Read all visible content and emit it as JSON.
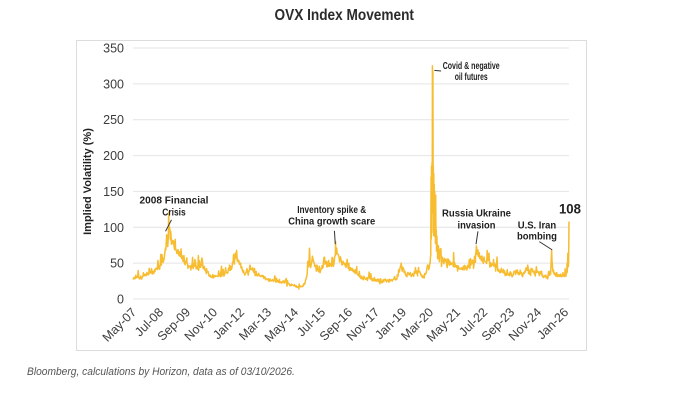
{
  "title": "OVX Index Movement",
  "footer": {
    "source": "Bloomberg, calculations by Horizon, data as of 03/10/2026."
  },
  "colors": {
    "line": "#F7BC2F",
    "grid": "#e4e4e4",
    "box_border": "#dcdcdc",
    "tick_text": "#3c3c3c",
    "annotation_text": "#1f1f1f",
    "pointer": "#333333",
    "title_text": "#2b2b2b",
    "source_text": "#555555"
  },
  "chart_data": {
    "type": "line",
    "title": "OVX Index Movement",
    "xlabel": "",
    "ylabel": "Implied Volatility (%)",
    "ylim": [
      0,
      350
    ],
    "yticks": [
      0,
      50,
      100,
      150,
      200,
      250,
      300,
      350
    ],
    "grid": "horizontal",
    "x_start_month": "2007-05",
    "x_range_months": 226,
    "xticks": [
      {
        "m": 0,
        "label": "May-07"
      },
      {
        "m": 14,
        "label": "Jul-08"
      },
      {
        "m": 28,
        "label": "Sep-09"
      },
      {
        "m": 42,
        "label": "Nov-10"
      },
      {
        "m": 56,
        "label": "Jan-12"
      },
      {
        "m": 70,
        "label": "Mar-13"
      },
      {
        "m": 84,
        "label": "May-14"
      },
      {
        "m": 98,
        "label": "Jul-15"
      },
      {
        "m": 112,
        "label": "Sep-16"
      },
      {
        "m": 126,
        "label": "Nov-17"
      },
      {
        "m": 140,
        "label": "Jan-19"
      },
      {
        "m": 154,
        "label": "Mar-20"
      },
      {
        "m": 168,
        "label": "May-21"
      },
      {
        "m": 182,
        "label": "Jul-22"
      },
      {
        "m": 196,
        "label": "Sep-23"
      },
      {
        "m": 210,
        "label": "Nov-24"
      },
      {
        "m": 224,
        "label": "Jan-26"
      }
    ],
    "series": [
      {
        "name": "OVX Index",
        "clean_ranges": [
          [
            18.9,
            19.15
          ],
          [
            104.95,
            105.15
          ],
          [
            155.1,
            155.6
          ],
          [
            177.9,
            178.15
          ],
          [
            216.9,
            217.15
          ],
          [
            225.5,
            226.01
          ]
        ],
        "anchors": [
          [
            0,
            29
          ],
          [
            2,
            32
          ],
          [
            4,
            30
          ],
          [
            6,
            33
          ],
          [
            8,
            36
          ],
          [
            10,
            37
          ],
          [
            12,
            40
          ],
          [
            14,
            44
          ],
          [
            15,
            50
          ],
          [
            16,
            58
          ],
          [
            17,
            70
          ],
          [
            17.5,
            85
          ],
          [
            18,
            75
          ],
          [
            18.5,
            95
          ],
          [
            19,
            100
          ],
          [
            19.3,
            85
          ],
          [
            19.6,
            92
          ],
          [
            20,
            78
          ],
          [
            21,
            80
          ],
          [
            22,
            68
          ],
          [
            24,
            62
          ],
          [
            26,
            55
          ],
          [
            28,
            50
          ],
          [
            30,
            46
          ],
          [
            32,
            44
          ],
          [
            34,
            42
          ],
          [
            36,
            48
          ],
          [
            37,
            44
          ],
          [
            38,
            38
          ],
          [
            40,
            34
          ],
          [
            42,
            32
          ],
          [
            44,
            33
          ],
          [
            46,
            34
          ],
          [
            48,
            36
          ],
          [
            50,
            42
          ],
          [
            51,
            44
          ],
          [
            52,
            56
          ],
          [
            52.5,
            50
          ],
          [
            53,
            65
          ],
          [
            53.4,
            55
          ],
          [
            53.8,
            60
          ],
          [
            54,
            52
          ],
          [
            55,
            50
          ],
          [
            56,
            46
          ],
          [
            57,
            40
          ],
          [
            58,
            37
          ],
          [
            59,
            42
          ],
          [
            60,
            36
          ],
          [
            61,
            42
          ],
          [
            62,
            40
          ],
          [
            63,
            36
          ],
          [
            64,
            36
          ],
          [
            66,
            33
          ],
          [
            68,
            30
          ],
          [
            70,
            27
          ],
          [
            72,
            26
          ],
          [
            74,
            25
          ],
          [
            76,
            24
          ],
          [
            78,
            23
          ],
          [
            80,
            21
          ],
          [
            82,
            20
          ],
          [
            84,
            18
          ],
          [
            86,
            17
          ],
          [
            88,
            18
          ],
          [
            89,
            22
          ],
          [
            90,
            30
          ],
          [
            91,
            48
          ],
          [
            91.5,
            55
          ],
          [
            92,
            45
          ],
          [
            93,
            60
          ],
          [
            93.5,
            50
          ],
          [
            94,
            48
          ],
          [
            95,
            42
          ],
          [
            96,
            40
          ],
          [
            97,
            38
          ],
          [
            98,
            42
          ],
          [
            98.5,
            46
          ],
          [
            99,
            58
          ],
          [
            99.5,
            48
          ],
          [
            100,
            52
          ],
          [
            100.5,
            44
          ],
          [
            101,
            46
          ],
          [
            102,
            48
          ],
          [
            103,
            50
          ],
          [
            103.5,
            56
          ],
          [
            104,
            52
          ],
          [
            104.5,
            58
          ],
          [
            104.9,
            62
          ],
          [
            105,
            80
          ],
          [
            105.15,
            62
          ],
          [
            105.5,
            70
          ],
          [
            105.8,
            60
          ],
          [
            106.2,
            64
          ],
          [
            106.8,
            55
          ],
          [
            107.5,
            58
          ],
          [
            108,
            50
          ],
          [
            110,
            48
          ],
          [
            112,
            44
          ],
          [
            114,
            42
          ],
          [
            116,
            37
          ],
          [
            118,
            32
          ],
          [
            120,
            30
          ],
          [
            122,
            29
          ],
          [
            124,
            27
          ],
          [
            126,
            26
          ],
          [
            128,
            25
          ],
          [
            130,
            26
          ],
          [
            132,
            26
          ],
          [
            134,
            25
          ],
          [
            136,
            28
          ],
          [
            137,
            30
          ],
          [
            138,
            38
          ],
          [
            139,
            48
          ],
          [
            139.5,
            40
          ],
          [
            140,
            44
          ],
          [
            140.5,
            38
          ],
          [
            141,
            36
          ],
          [
            142,
            34
          ],
          [
            143,
            37
          ],
          [
            144,
            36
          ],
          [
            145,
            34
          ],
          [
            146,
            35
          ],
          [
            147,
            40
          ],
          [
            147.5,
            36
          ],
          [
            148,
            44
          ],
          [
            148.3,
            38
          ],
          [
            149,
            36
          ],
          [
            150,
            33
          ],
          [
            151,
            32
          ],
          [
            152,
            35
          ],
          [
            153,
            42
          ],
          [
            154,
            48
          ],
          [
            154.35,
            55
          ],
          [
            154.5,
            170
          ],
          [
            154.62,
            80
          ],
          [
            154.74,
            185
          ],
          [
            154.86,
            95
          ],
          [
            154.98,
            190
          ],
          [
            155.1,
            120
          ],
          [
            155.2,
            325
          ],
          [
            155.32,
            200
          ],
          [
            155.44,
            318
          ],
          [
            155.56,
            180
          ],
          [
            155.68,
            185
          ],
          [
            155.8,
            95
          ],
          [
            155.92,
            175
          ],
          [
            156.04,
            90
          ],
          [
            156.16,
            160
          ],
          [
            156.28,
            85
          ],
          [
            156.4,
            150
          ],
          [
            156.52,
            80
          ],
          [
            156.64,
            140
          ],
          [
            156.76,
            75
          ],
          [
            156.9,
            120
          ],
          [
            157.05,
            70
          ],
          [
            157.2,
            100
          ],
          [
            157.35,
            62
          ],
          [
            157.6,
            85
          ],
          [
            157.9,
            58
          ],
          [
            158.3,
            75
          ],
          [
            158.8,
            55
          ],
          [
            159.3,
            68
          ],
          [
            159.8,
            52
          ],
          [
            160.4,
            62
          ],
          [
            161,
            52
          ],
          [
            162,
            56
          ],
          [
            163,
            48
          ],
          [
            164,
            52
          ],
          [
            165,
            45
          ],
          [
            166,
            48
          ],
          [
            167,
            44
          ],
          [
            168,
            45
          ],
          [
            170,
            40
          ],
          [
            172,
            42
          ],
          [
            174,
            44
          ],
          [
            175,
            46
          ],
          [
            176,
            50
          ],
          [
            176.5,
            48
          ],
          [
            177,
            56
          ],
          [
            177.5,
            52
          ],
          [
            178,
            74
          ],
          [
            178.3,
            62
          ],
          [
            178.7,
            68
          ],
          [
            179,
            58
          ],
          [
            179.5,
            62
          ],
          [
            180,
            55
          ],
          [
            181,
            58
          ],
          [
            181.5,
            52
          ],
          [
            182,
            56
          ],
          [
            183,
            50
          ],
          [
            184,
            54
          ],
          [
            185,
            48
          ],
          [
            186,
            50
          ],
          [
            187,
            46
          ],
          [
            188,
            44
          ],
          [
            189,
            42
          ],
          [
            190,
            40
          ],
          [
            191,
            42
          ],
          [
            192,
            38
          ],
          [
            193,
            36
          ],
          [
            194,
            37
          ],
          [
            195,
            34
          ],
          [
            196,
            35
          ],
          [
            197,
            37
          ],
          [
            198,
            36
          ],
          [
            199,
            39
          ],
          [
            200,
            36
          ],
          [
            201,
            34
          ],
          [
            202,
            33
          ],
          [
            203,
            36
          ],
          [
            204,
            46
          ],
          [
            204.3,
            40
          ],
          [
            204.6,
            44
          ],
          [
            205,
            38
          ],
          [
            206,
            33
          ],
          [
            207,
            35
          ],
          [
            208,
            37
          ],
          [
            208.5,
            34
          ],
          [
            209,
            42
          ],
          [
            209.5,
            38
          ],
          [
            210,
            41
          ],
          [
            210.5,
            37
          ],
          [
            211,
            38
          ],
          [
            212,
            33
          ],
          [
            213,
            31
          ],
          [
            214,
            30
          ],
          [
            215,
            29
          ],
          [
            216,
            30
          ],
          [
            216.5,
            33
          ],
          [
            217,
            68
          ],
          [
            217.3,
            45
          ],
          [
            217.6,
            40
          ],
          [
            218,
            36
          ],
          [
            219,
            33
          ],
          [
            220,
            32
          ],
          [
            221,
            31
          ],
          [
            222,
            32
          ],
          [
            223,
            33
          ],
          [
            224,
            34
          ],
          [
            224.5,
            33
          ],
          [
            224.8,
            36
          ],
          [
            225.1,
            40
          ],
          [
            225.4,
            58
          ],
          [
            225.6,
            45
          ],
          [
            225.8,
            50
          ],
          [
            226,
            108
          ]
        ]
      }
    ],
    "annotations": [
      {
        "id": "financial-crisis",
        "lines": [
          "2008 Financial",
          "Crisis"
        ],
        "widths": [
          69,
          23.5
        ],
        "cm": 21.25,
        "baseline_v": [
          133.3,
          116.7
        ],
        "pointer": {
          "from": [
            19.96,
            110.4
          ],
          "to": [
            16.85,
            94.4
          ]
        }
      },
      {
        "id": "inventory-china",
        "lines": [
          "Inventory spike &",
          "China growth scare"
        ],
        "widths": [
          69,
          87
        ],
        "cm": 103.0,
        "baseline_v": [
          119.9,
          103.8
        ],
        "pointer": {
          "from": [
            104.4,
            95.1
          ],
          "to": [
            104.85,
            76.4
          ]
        }
      },
      {
        "id": "covid",
        "lines": [
          "Covid & negative",
          "oil futures"
        ],
        "widths": [
          57,
          33
        ],
        "cm": 175.3,
        "baseline_v": [
          320.8,
          305.6
        ],
        "pointer": {
          "from": [
            159.7,
            318.0
          ],
          "to": [
            156.2,
            318.8
          ]
        }
      },
      {
        "id": "russia-ukraine",
        "lines": [
          "Russia Ukraine",
          "invasion"
        ],
        "widths": [
          69,
          38
        ],
        "cm": 178.05,
        "baseline_v": [
          115.3,
          98.6
        ],
        "pointer": {
          "from": [
            178.8,
            94.4
          ],
          "to": [
            177.8,
            76.4
          ]
        }
      },
      {
        "id": "us-iran",
        "lines": [
          "U.S. Iran",
          "bombing"
        ],
        "widths": [
          38.5,
          40
        ],
        "cm": 209.4,
        "baseline_v": [
          98.6,
          83.3
        ],
        "pointer": {
          "from": [
            210.6,
            80.0
          ],
          "to": [
            217.3,
            68.5
          ]
        }
      }
    ],
    "end_label": {
      "text": "108",
      "cm": 226.5,
      "baseline_v": 119.4,
      "width": 22
    }
  }
}
